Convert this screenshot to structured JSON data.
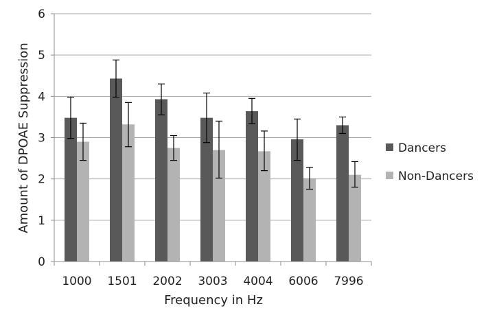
{
  "chart_data": {
    "type": "bar",
    "title": "",
    "xlabel": "Frequency in Hz",
    "ylabel": "Amount of DPOAE Suppression",
    "categories": [
      "1000",
      "1501",
      "2002",
      "3003",
      "4004",
      "6006",
      "7996"
    ],
    "ylim": [
      0,
      6
    ],
    "yticks": [
      "0",
      "1",
      "2",
      "3",
      "4",
      "5",
      "6"
    ],
    "grid": true,
    "legend_position": "right",
    "series": [
      {
        "name": "Dancers",
        "color": "#595959",
        "values": [
          3.48,
          4.43,
          3.93,
          3.48,
          3.64,
          2.96,
          3.3
        ],
        "error_low": [
          2.98,
          3.98,
          3.55,
          2.88,
          3.34,
          2.45,
          3.1
        ],
        "error_high": [
          3.98,
          4.88,
          4.3,
          4.08,
          3.95,
          3.45,
          3.5
        ]
      },
      {
        "name": "Non-Dancers",
        "color": "#b3b3b3",
        "values": [
          2.9,
          3.32,
          2.75,
          2.7,
          2.67,
          2.02,
          2.1
        ],
        "error_low": [
          2.45,
          2.78,
          2.45,
          2.02,
          2.2,
          1.75,
          1.8
        ],
        "error_high": [
          3.35,
          3.85,
          3.05,
          3.4,
          3.16,
          2.28,
          2.42
        ]
      }
    ]
  }
}
